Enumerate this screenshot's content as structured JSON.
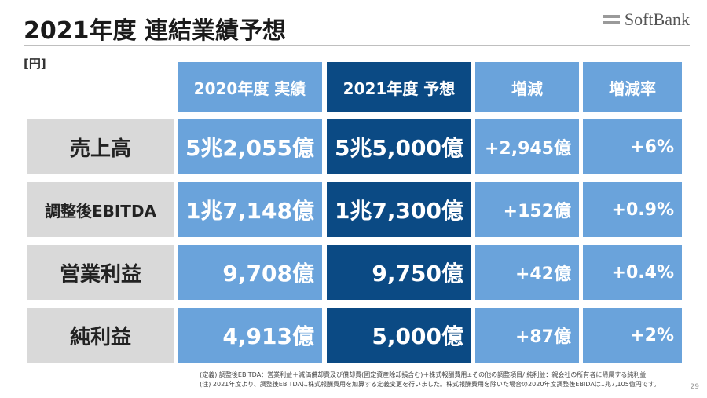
{
  "slide": {
    "title": "2021年度 連結業績予想",
    "logo_text": "SoftBank",
    "unit": "[円]",
    "page_number": "29"
  },
  "table": {
    "headers": [
      "2020年度 実績",
      "2021年度 予想",
      "増減",
      "増減率"
    ],
    "rows": [
      {
        "label": "売上高",
        "actual_2020": "5兆2,055億",
        "forecast_2021": "5兆5,000億",
        "change": "+2,945億",
        "change_rate": "+6%"
      },
      {
        "label": "調整後EBITDA",
        "actual_2020": "1兆7,148億",
        "forecast_2021": "1兆7,300億",
        "change": "+152億",
        "change_rate": "+0.9%"
      },
      {
        "label": "営業利益",
        "actual_2020": "9,708億",
        "forecast_2021": "9,750億",
        "change": "+42億",
        "change_rate": "+0.4%"
      },
      {
        "label": "純利益",
        "actual_2020": "4,913億",
        "forecast_2021": "5,000億",
        "change": "+87億",
        "change_rate": "+2%"
      }
    ]
  },
  "footnotes": [
    "(定義) 調整後EBITDA：営業利益＋減価償却費及び償却費(固定資産除却損含む)＋株式報酬費用±その他の調整項目/ 純利益：親会社の所有者に帰属する純利益",
    "(注) 2021年度より、調整後EBITDAに株式報酬費用を加算する定義変更を行いました。株式報酬費用を除いた場合の2020年度調整後EBIDAは1兆7,105億円です。"
  ],
  "colors": {
    "header_light": "#6aa3db",
    "header_dark": "#0b4a84",
    "row_label_bg": "#d9d9d9"
  }
}
